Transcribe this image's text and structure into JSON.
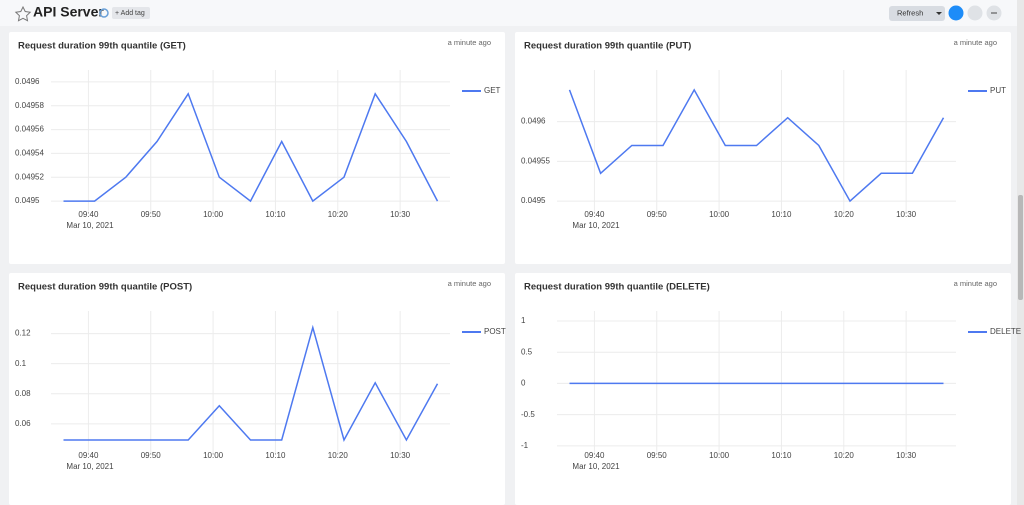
{
  "header": {
    "title": "API Server",
    "add_tag": "+ Add tag",
    "refresh": "Refresh"
  },
  "chart_data": [
    {
      "type": "line",
      "title": "Request duration 99th quantile (GET)",
      "updated": "a minute ago",
      "x": [
        "2021-03-10T09:36",
        "2021-03-10T09:41",
        "2021-03-10T09:46",
        "2021-03-10T09:51",
        "2021-03-10T09:56",
        "2021-03-10T10:01",
        "2021-03-10T10:06",
        "2021-03-10T10:11",
        "2021-03-10T10:16",
        "2021-03-10T10:21",
        "2021-03-10T10:26",
        "2021-03-10T10:31",
        "2021-03-10T10:36"
      ],
      "series": [
        {
          "name": "GET",
          "color": "#4e79f0",
          "values": [
            0.0495,
            0.0495,
            0.04952,
            0.04955,
            0.04959,
            0.04952,
            0.0495,
            0.04955,
            0.0495,
            0.04952,
            0.04959,
            0.04955,
            0.0495
          ]
        }
      ],
      "xlim": [
        "2021-03-10T09:34",
        "2021-03-10T10:38"
      ],
      "xticks": [
        {
          "value": "2021-03-10T09:40",
          "label": "09:40"
        },
        {
          "value": "2021-03-10T09:50",
          "label": "09:50"
        },
        {
          "value": "2021-03-10T10:00",
          "label": "10:00"
        },
        {
          "value": "2021-03-10T10:10",
          "label": "10:10"
        },
        {
          "value": "2021-03-10T10:20",
          "label": "10:20"
        },
        {
          "value": "2021-03-10T10:30",
          "label": "10:30"
        }
      ],
      "x_date_label": "Mar 10, 2021",
      "ylim": [
        0.04949,
        0.04961
      ],
      "yticks": [
        0.0495,
        0.04952,
        0.04954,
        0.04956,
        0.04958,
        0.0496
      ],
      "grid": true
    },
    {
      "type": "line",
      "title": "Request duration 99th quantile (PUT)",
      "updated": "a minute ago",
      "x": [
        "2021-03-10T09:36",
        "2021-03-10T09:41",
        "2021-03-10T09:46",
        "2021-03-10T09:51",
        "2021-03-10T09:56",
        "2021-03-10T10:01",
        "2021-03-10T10:06",
        "2021-03-10T10:11",
        "2021-03-10T10:16",
        "2021-03-10T10:21",
        "2021-03-10T10:26",
        "2021-03-10T10:31",
        "2021-03-10T10:36"
      ],
      "series": [
        {
          "name": "PUT",
          "color": "#4e79f0",
          "values": [
            0.04964,
            0.049535,
            0.04957,
            0.04957,
            0.04964,
            0.04957,
            0.04957,
            0.049605,
            0.04957,
            0.0495,
            0.049535,
            0.049535,
            0.049605
          ]
        }
      ],
      "xlim": [
        "2021-03-10T09:34",
        "2021-03-10T10:38"
      ],
      "xticks": [
        {
          "value": "2021-03-10T09:40",
          "label": "09:40"
        },
        {
          "value": "2021-03-10T09:50",
          "label": "09:50"
        },
        {
          "value": "2021-03-10T10:00",
          "label": "10:00"
        },
        {
          "value": "2021-03-10T10:10",
          "label": "10:10"
        },
        {
          "value": "2021-03-10T10:20",
          "label": "10:20"
        },
        {
          "value": "2021-03-10T10:30",
          "label": "10:30"
        }
      ],
      "x_date_label": "Mar 10, 2021",
      "ylim": [
        0.049485,
        0.049665
      ],
      "yticks": [
        0.0495,
        0.04955,
        0.0496
      ],
      "grid": true
    },
    {
      "type": "line",
      "title": "Request duration 99th quantile (POST)",
      "updated": "a minute ago",
      "x": [
        "2021-03-10T09:36",
        "2021-03-10T09:41",
        "2021-03-10T09:46",
        "2021-03-10T09:51",
        "2021-03-10T09:56",
        "2021-03-10T10:01",
        "2021-03-10T10:06",
        "2021-03-10T10:11",
        "2021-03-10T10:16",
        "2021-03-10T10:21",
        "2021-03-10T10:26",
        "2021-03-10T10:31",
        "2021-03-10T10:36"
      ],
      "series": [
        {
          "name": "POST",
          "color": "#4e79f0",
          "values": [
            0.0493,
            0.0493,
            0.0493,
            0.0493,
            0.0493,
            0.072,
            0.0493,
            0.0493,
            0.124,
            0.0493,
            0.0873,
            0.0493,
            0.0867
          ]
        }
      ],
      "xlim": [
        "2021-03-10T09:34",
        "2021-03-10T10:38"
      ],
      "xticks": [
        {
          "value": "2021-03-10T09:40",
          "label": "09:40"
        },
        {
          "value": "2021-03-10T09:50",
          "label": "09:50"
        },
        {
          "value": "2021-03-10T10:00",
          "label": "10:00"
        },
        {
          "value": "2021-03-10T10:10",
          "label": "10:10"
        },
        {
          "value": "2021-03-10T10:20",
          "label": "10:20"
        },
        {
          "value": "2021-03-10T10:30",
          "label": "10:30"
        }
      ],
      "x_date_label": "Mar 10, 2021",
      "ylim": [
        0.04,
        0.135
      ],
      "yticks": [
        0.06,
        0.08,
        0.1,
        0.12
      ],
      "grid": true
    },
    {
      "type": "line",
      "title": "Request duration 99th quantile (DELETE)",
      "updated": "a minute ago",
      "x": [
        "2021-03-10T09:36",
        "2021-03-10T09:41",
        "2021-03-10T09:46",
        "2021-03-10T09:51",
        "2021-03-10T09:56",
        "2021-03-10T10:01",
        "2021-03-10T10:06",
        "2021-03-10T10:11",
        "2021-03-10T10:16",
        "2021-03-10T10:21",
        "2021-03-10T10:26",
        "2021-03-10T10:31",
        "2021-03-10T10:36"
      ],
      "series": [
        {
          "name": "DELETE",
          "color": "#4e79f0",
          "values": [
            0,
            0,
            0,
            0,
            0,
            0,
            0,
            0,
            0,
            0,
            0,
            0,
            0
          ]
        }
      ],
      "xlim": [
        "2021-03-10T09:34",
        "2021-03-10T10:38"
      ],
      "xticks": [
        {
          "value": "2021-03-10T09:40",
          "label": "09:40"
        },
        {
          "value": "2021-03-10T09:50",
          "label": "09:50"
        },
        {
          "value": "2021-03-10T10:00",
          "label": "10:00"
        },
        {
          "value": "2021-03-10T10:10",
          "label": "10:10"
        },
        {
          "value": "2021-03-10T10:20",
          "label": "10:20"
        },
        {
          "value": "2021-03-10T10:30",
          "label": "10:30"
        }
      ],
      "x_date_label": "Mar 10, 2021",
      "ylim": [
        -1.13,
        1.16
      ],
      "yticks": [
        -1,
        -0.5,
        0,
        0.5,
        1
      ],
      "grid": true
    }
  ]
}
